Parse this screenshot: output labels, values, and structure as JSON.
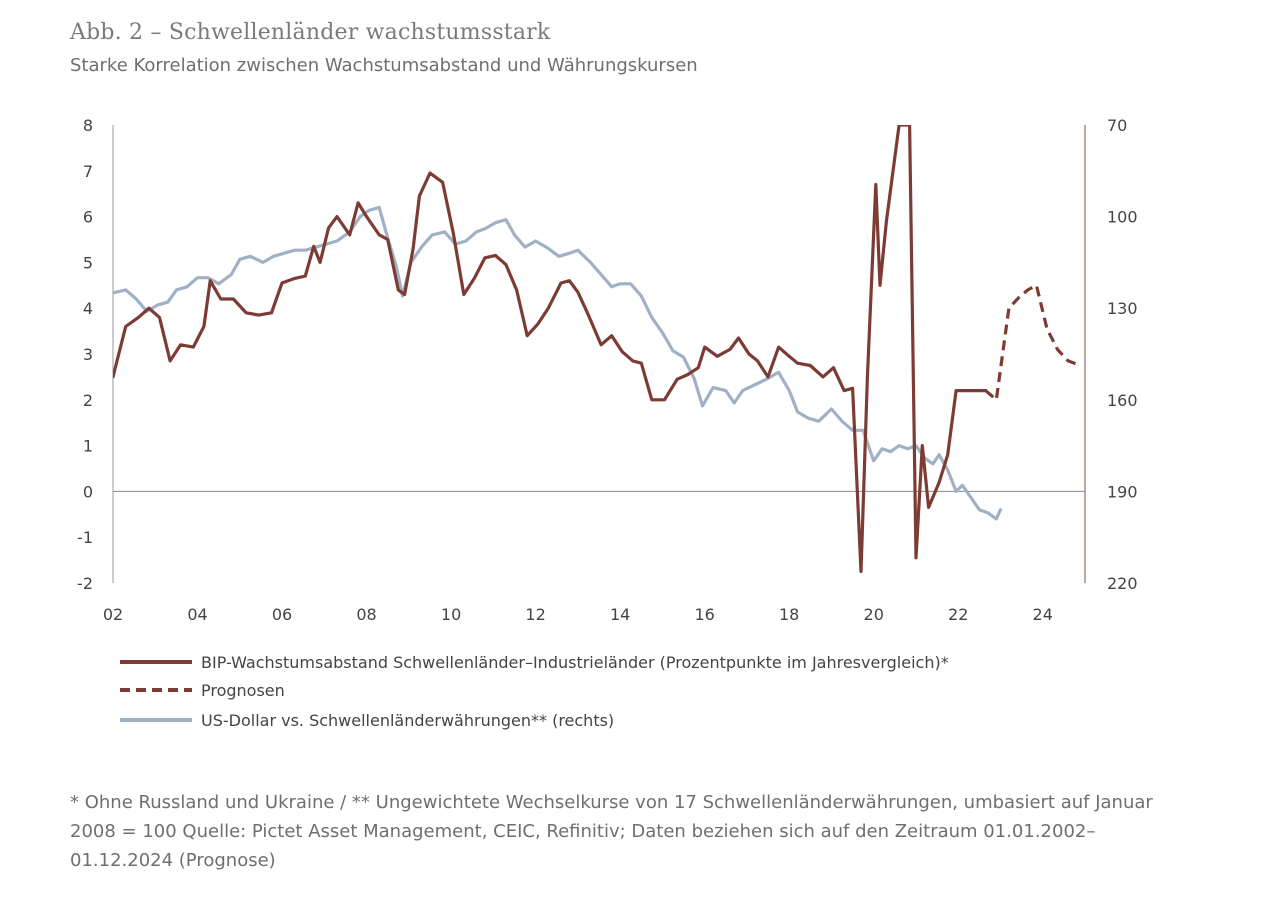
{
  "title": "Abb. 2 – Schwellenländer wachstumsstark",
  "subtitle": "Starke Korrelation zwischen Wachstumsabstand und Währungskursen",
  "footnote": "* Ohne Russland und Ukraine / ** Ungewichtete Wechselkurse von 17 Schwellenländerwährungen, umbasiert auf Januar 2008 = 100 Quelle: Pictet Asset Management, CEIC, Refinitiv; Daten beziehen sich auf den Zeitraum 01.01.2002–01.12.2024 (Prognose)",
  "chart_data": {
    "type": "line",
    "xlim": [
      2002,
      2025
    ],
    "ylim_left": [
      -2,
      8
    ],
    "ylim_right": [
      70,
      220
    ],
    "right_axis_inverted": true,
    "grid": false,
    "legend_position": "bottom",
    "x_ticks": [
      {
        "value": 2002,
        "label": "02"
      },
      {
        "value": 2004,
        "label": "04"
      },
      {
        "value": 2006,
        "label": "06"
      },
      {
        "value": 2008,
        "label": "08"
      },
      {
        "value": 2010,
        "label": "10"
      },
      {
        "value": 2012,
        "label": "12"
      },
      {
        "value": 2014,
        "label": "14"
      },
      {
        "value": 2016,
        "label": "16"
      },
      {
        "value": 2018,
        "label": "18"
      },
      {
        "value": 2020,
        "label": "20"
      },
      {
        "value": 2022,
        "label": "22"
      },
      {
        "value": 2024,
        "label": "24"
      }
    ],
    "y_ticks_left": [
      {
        "value": 8,
        "label": "8"
      },
      {
        "value": 7,
        "label": "7"
      },
      {
        "value": 6,
        "label": "6"
      },
      {
        "value": 5,
        "label": "5"
      },
      {
        "value": 4,
        "label": "4"
      },
      {
        "value": 3,
        "label": "3"
      },
      {
        "value": 2,
        "label": "2"
      },
      {
        "value": 1,
        "label": "1"
      },
      {
        "value": 0,
        "label": "0"
      },
      {
        "value": -1,
        "label": "-1"
      },
      {
        "value": -2,
        "label": "-2"
      }
    ],
    "y_ticks_right": [
      {
        "value": 70,
        "label": "70"
      },
      {
        "value": 100,
        "label": "100"
      },
      {
        "value": 130,
        "label": "130"
      },
      {
        "value": 160,
        "label": "160"
      },
      {
        "value": 190,
        "label": "190"
      },
      {
        "value": 220,
        "label": "220"
      }
    ],
    "series": [
      {
        "name": "BIP-Wachstumsabstand Schwellenländer–Industrieländer (Prozentpunkte im Jahresvergleich)*",
        "axis": "left",
        "color": "#7d3c33",
        "style": "solid",
        "x": [
          2002.0,
          2002.3,
          2002.6,
          2002.85,
          2003.1,
          2003.35,
          2003.6,
          2003.9,
          2004.15,
          2004.3,
          2004.55,
          2004.85,
          2005.15,
          2005.45,
          2005.75,
          2006.0,
          2006.3,
          2006.55,
          2006.75,
          2006.9,
          2007.1,
          2007.3,
          2007.6,
          2007.8,
          2008.0,
          2008.3,
          2008.5,
          2008.75,
          2008.9,
          2009.1,
          2009.25,
          2009.5,
          2009.8,
          2010.05,
          2010.3,
          2010.55,
          2010.8,
          2011.05,
          2011.3,
          2011.55,
          2011.8,
          2012.05,
          2012.3,
          2012.6,
          2012.8,
          2013.0,
          2013.25,
          2013.55,
          2013.8,
          2014.05,
          2014.3,
          2014.5,
          2014.75,
          2015.05,
          2015.35,
          2015.6,
          2015.85,
          2016.0,
          2016.3,
          2016.6,
          2016.8,
          2017.05,
          2017.25,
          2017.5,
          2017.75,
          2018.0,
          2018.2,
          2018.5,
          2018.8,
          2019.05,
          2019.3,
          2019.5,
          2019.7,
          2019.85,
          2020.05,
          2020.15,
          2020.3,
          2020.6,
          2020.85,
          2021.0,
          2021.15,
          2021.3,
          2021.55,
          2021.75,
          2021.95,
          2022.25,
          2022.5,
          2022.65
        ],
        "values": [
          2.5,
          3.6,
          3.8,
          4.0,
          3.8,
          2.85,
          3.2,
          3.15,
          3.6,
          4.6,
          4.2,
          4.2,
          3.9,
          3.85,
          3.9,
          4.55,
          4.65,
          4.7,
          5.35,
          5.0,
          5.75,
          6.0,
          5.6,
          6.3,
          6.0,
          5.6,
          5.5,
          4.4,
          4.3,
          5.3,
          6.45,
          6.95,
          6.75,
          5.65,
          4.3,
          4.65,
          5.1,
          5.15,
          4.95,
          4.4,
          3.4,
          3.65,
          4.0,
          4.55,
          4.6,
          4.35,
          3.85,
          3.2,
          3.4,
          3.05,
          2.85,
          2.8,
          2.0,
          2.0,
          2.45,
          2.55,
          2.7,
          3.15,
          2.95,
          3.1,
          3.35,
          3.0,
          2.85,
          2.5,
          3.15,
          2.95,
          2.8,
          2.75,
          2.5,
          2.7,
          2.2,
          2.25,
          -1.75,
          2.5,
          6.7,
          4.5,
          5.9,
          8.0,
          8.0,
          -1.45,
          1.0,
          -0.35,
          0.2,
          0.8,
          2.2,
          2.2,
          2.2,
          2.2
        ]
      },
      {
        "name": "Prognosen",
        "axis": "left",
        "color": "#7d3c33",
        "style": "dashed",
        "x": [
          2022.65,
          2022.9,
          2023.2,
          2023.45,
          2023.65,
          2023.85,
          2024.1,
          2024.35,
          2024.6,
          2024.9
        ],
        "values": [
          2.2,
          2.0,
          4.0,
          4.25,
          4.4,
          4.5,
          3.55,
          3.1,
          2.85,
          2.75
        ]
      },
      {
        "name": "US-Dollar vs. Schwellenländerwährungen** (rechts)",
        "axis": "right",
        "color": "#a1b1c5",
        "style": "solid",
        "x": [
          2002.0,
          2002.3,
          2002.55,
          2002.8,
          2003.05,
          2003.3,
          2003.5,
          2003.75,
          2004.0,
          2004.25,
          2004.5,
          2004.8,
          2005.0,
          2005.25,
          2005.55,
          2005.8,
          2006.05,
          2006.3,
          2006.55,
          2006.8,
          2007.05,
          2007.3,
          2007.6,
          2007.85,
          2008.05,
          2008.3,
          2008.5,
          2008.7,
          2008.85,
          2009.05,
          2009.3,
          2009.55,
          2009.85,
          2010.1,
          2010.35,
          2010.6,
          2010.8,
          2011.05,
          2011.3,
          2011.5,
          2011.75,
          2012.0,
          2012.25,
          2012.55,
          2012.8,
          2013.0,
          2013.3,
          2013.55,
          2013.8,
          2014.0,
          2014.25,
          2014.5,
          2014.75,
          2015.0,
          2015.25,
          2015.5,
          2015.75,
          2015.95,
          2016.2,
          2016.5,
          2016.7,
          2016.9,
          2017.2,
          2017.5,
          2017.75,
          2018.0,
          2018.2,
          2018.45,
          2018.7,
          2019.0,
          2019.25,
          2019.5,
          2019.75,
          2020.0,
          2020.2,
          2020.4,
          2020.6,
          2020.8,
          2021.0,
          2021.2,
          2021.4,
          2021.55,
          2021.75,
          2021.95,
          2022.1,
          2022.3,
          2022.5,
          2022.7,
          2022.9,
          2023.0
        ],
        "values": [
          125,
          124,
          127,
          131,
          129,
          128,
          124,
          123,
          120,
          120,
          122,
          119,
          114,
          113,
          115,
          113,
          112,
          111,
          111,
          110,
          109,
          108,
          105,
          100,
          98,
          97,
          107,
          116,
          126,
          115,
          110,
          106,
          105,
          109,
          108,
          105,
          104,
          102,
          101,
          106,
          110,
          108,
          110,
          113,
          112,
          111,
          115,
          119,
          123,
          122,
          122,
          126,
          133,
          138,
          144,
          146,
          153,
          162,
          156,
          157,
          161,
          157,
          155,
          153,
          151,
          157,
          164,
          166,
          167,
          163,
          167,
          170,
          170,
          180,
          176,
          177,
          175,
          176,
          175,
          179,
          181,
          178,
          183,
          190,
          188,
          192,
          196,
          197,
          199,
          196
        ]
      }
    ]
  }
}
